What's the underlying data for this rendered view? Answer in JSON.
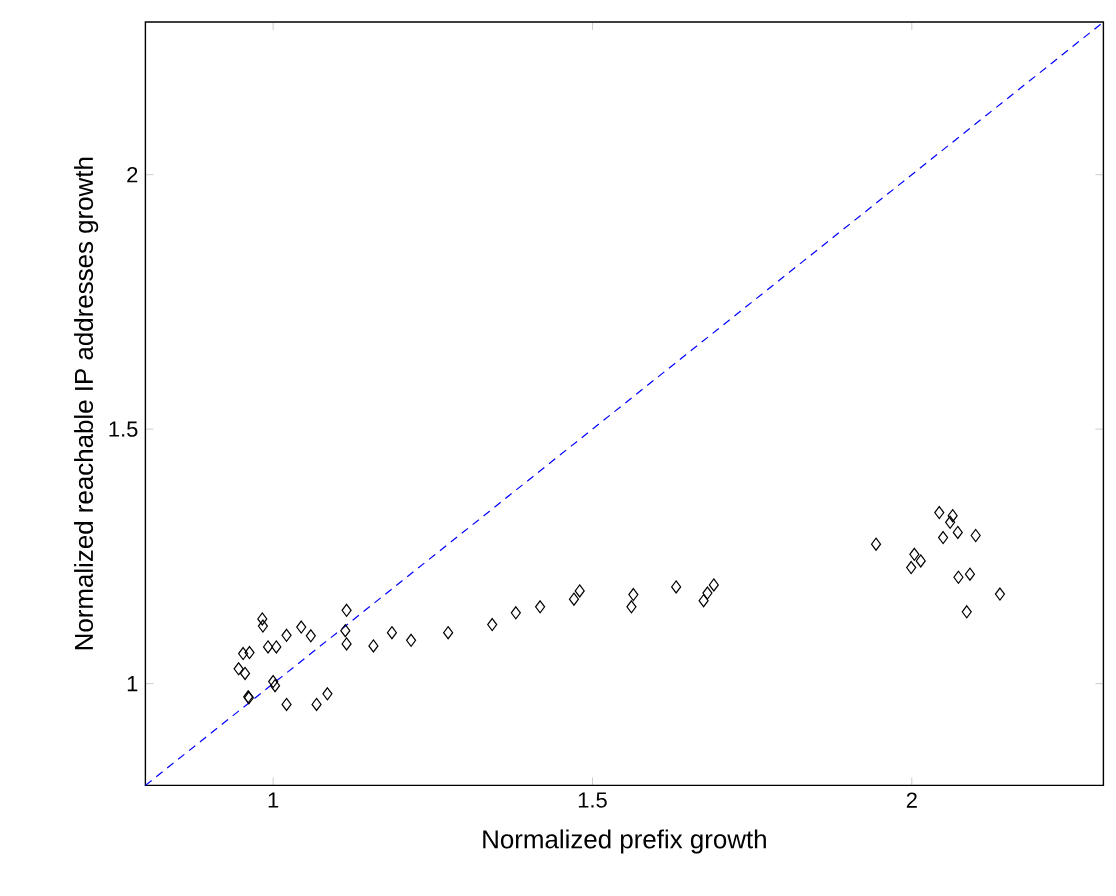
{
  "chart_data": {
    "type": "scatter",
    "xlabel": "Normalized prefix growth",
    "ylabel": "Normalized reachable IP addresses growth",
    "xlim": [
      0.8,
      2.3
    ],
    "ylim": [
      0.8,
      2.3
    ],
    "xticks": [
      1,
      1.5,
      2
    ],
    "yticks": [
      1,
      1.5,
      2
    ],
    "grid": false,
    "series": [
      {
        "marker": "diamond",
        "color": "#000000",
        "x": [
          0.983,
          0.984,
          0.953,
          0.963,
          0.946,
          0.956,
          0.961,
          0.962,
          1.0,
          1.003,
          0.992,
          1.005,
          1.021,
          1.044,
          1.059,
          1.021,
          1.068,
          1.085,
          1.115,
          1.113,
          1.115,
          1.157,
          1.186,
          1.216,
          1.274,
          1.343,
          1.38,
          1.418,
          1.471,
          1.48,
          1.564,
          1.561,
          1.631,
          1.674,
          1.68,
          1.69,
          1.944,
          2.043,
          2.064,
          2.06,
          2.072,
          2.049,
          2.1,
          2.004,
          2.014,
          1.999,
          2.073,
          2.091,
          2.138,
          2.086
        ],
        "values": [
          1.127,
          1.113,
          1.059,
          1.061,
          1.029,
          1.02,
          0.974,
          0.972,
          1.004,
          0.996,
          1.072,
          1.072,
          1.095,
          1.111,
          1.094,
          0.959,
          0.959,
          0.98,
          1.144,
          1.104,
          1.078,
          1.074,
          1.1,
          1.085,
          1.1,
          1.116,
          1.139,
          1.151,
          1.166,
          1.182,
          1.175,
          1.151,
          1.19,
          1.163,
          1.178,
          1.194,
          1.274,
          1.336,
          1.33,
          1.317,
          1.297,
          1.287,
          1.291,
          1.254,
          1.241,
          1.228,
          1.209,
          1.215,
          1.176,
          1.141
        ]
      },
      {
        "type": "line",
        "marker": "none",
        "line_style": "dashed",
        "color": "#0000ff",
        "x": [
          0.8,
          2.3
        ],
        "values": [
          0.8,
          2.3
        ]
      }
    ]
  }
}
